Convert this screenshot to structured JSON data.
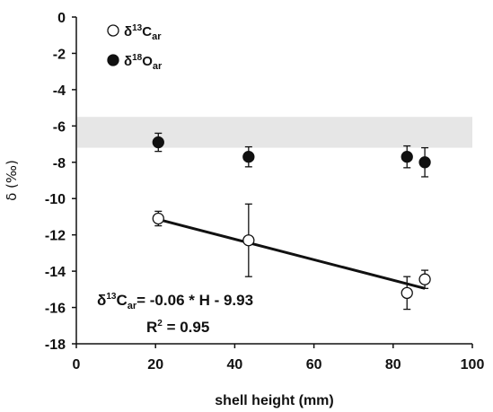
{
  "chart_data": {
    "type": "scatter",
    "xlabel": "shell height (mm)",
    "ylabel": "δ (‰)",
    "xlim": [
      0,
      100
    ],
    "ylim": [
      -18,
      0
    ],
    "xticks": [
      0,
      20,
      40,
      60,
      80,
      100
    ],
    "yticks": [
      0,
      -2,
      -4,
      -6,
      -8,
      -10,
      -12,
      -14,
      -16,
      -18
    ],
    "grid": false,
    "legend_position": "top-left",
    "shaded_band": {
      "y_from": -5.5,
      "y_to": -7.2,
      "color": "#e6e6e6"
    },
    "series": [
      {
        "name_parts": {
          "delta": "δ",
          "sup": "13",
          "base": "C",
          "sub": "ar"
        },
        "marker": "open-circle",
        "x": [
          20.7,
          43.5,
          83.5,
          88.0
        ],
        "y": [
          -11.1,
          -12.3,
          -15.2,
          -14.45
        ],
        "err": [
          0.4,
          2.0,
          0.9,
          0.5
        ]
      },
      {
        "name_parts": {
          "delta": "δ",
          "sup": "18",
          "base": "O",
          "sub": "ar"
        },
        "marker": "filled-circle",
        "x": [
          20.7,
          43.5,
          83.5,
          88.0
        ],
        "y": [
          -6.9,
          -7.7,
          -7.7,
          -8.0
        ],
        "err": [
          0.5,
          0.55,
          0.6,
          0.8
        ]
      }
    ],
    "regression": {
      "x_range": [
        20.7,
        88.0
      ],
      "slope": -0.06,
      "intercept": -9.93,
      "line_y": [
        -11.15,
        -14.95
      ]
    },
    "equation": {
      "delta": "δ",
      "sup": "13",
      "base": "C",
      "sub": "ar",
      "rhs": "= -0.06 * H - 9.93"
    },
    "r2": {
      "base": "R",
      "sup": "2",
      "rhs": " = 0.95"
    }
  }
}
